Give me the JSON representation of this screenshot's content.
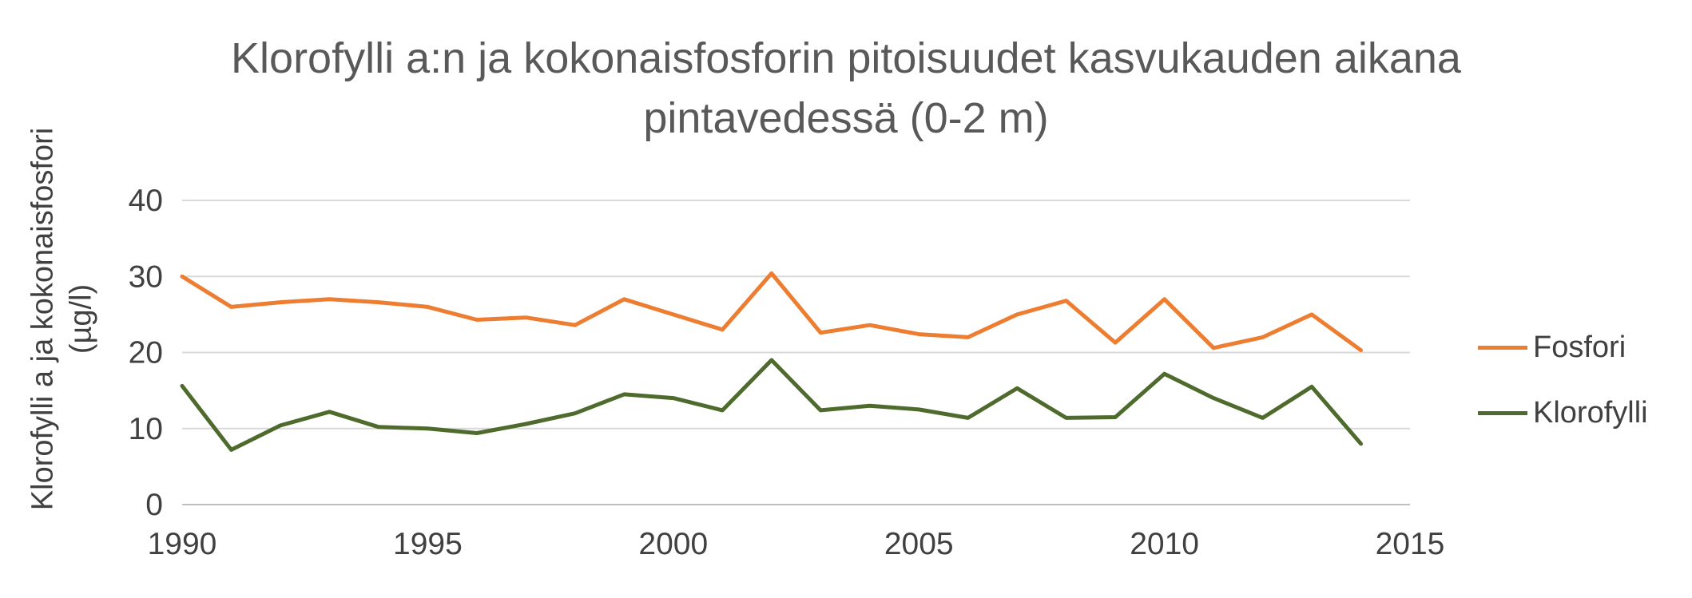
{
  "title": "Klorofylli a:n ja kokonaisfosforin pitoisuudet kasvukauden aikana pintavedessä (0-2 m)",
  "y_axis_label": "Klorofylli a ja kokonaisfosfori\n(µg/l)",
  "legend": [
    {
      "label": "Fosfori",
      "color": "#ED7D31"
    },
    {
      "label": "Klorofylli",
      "color": "#4E6B2D"
    }
  ],
  "colors": {
    "title_text": "#595959",
    "axis_text": "#404040",
    "gridline": "#D9D9D9",
    "axis_line": "#BFBFBF",
    "background": "#FFFFFF"
  },
  "chart_data": {
    "type": "line",
    "title": "Klorofylli a:n ja kokonaisfosforin pitoisuudet kasvukauden aikana pintavedessä (0-2 m)",
    "xlabel": "",
    "ylabel": "Klorofylli a ja kokonaisfosfori (µg/l)",
    "x": [
      1990,
      1991,
      1992,
      1993,
      1994,
      1995,
      1996,
      1997,
      1998,
      1999,
      2000,
      2001,
      2002,
      2003,
      2004,
      2005,
      2006,
      2007,
      2008,
      2009,
      2010,
      2011,
      2012,
      2013,
      2014
    ],
    "series": [
      {
        "name": "Fosfori",
        "color": "#ED7D31",
        "values": [
          30,
          26,
          26.6,
          27,
          26.6,
          26,
          24.3,
          24.6,
          23.6,
          27,
          25,
          23,
          30.4,
          22.6,
          23.6,
          22.4,
          22,
          25,
          26.8,
          21.3,
          27,
          20.6,
          22,
          25,
          20.3
        ]
      },
      {
        "name": "Klorofylli",
        "color": "#4E6B2D",
        "values": [
          15.6,
          7.2,
          10.4,
          12.2,
          10.2,
          10,
          9.4,
          10.6,
          12,
          14.5,
          14,
          12.4,
          19,
          12.4,
          13,
          12.5,
          11.4,
          15.3,
          11.4,
          11.5,
          17.2,
          14,
          11.4,
          15.5,
          8
        ]
      }
    ],
    "xlim": [
      1990,
      2015
    ],
    "ylim": [
      0,
      40
    ],
    "xticks": [
      1990,
      1995,
      2000,
      2005,
      2010,
      2015
    ],
    "yticks": [
      0,
      10,
      20,
      30,
      40
    ],
    "grid": "horizontal",
    "legend_position": "right"
  }
}
